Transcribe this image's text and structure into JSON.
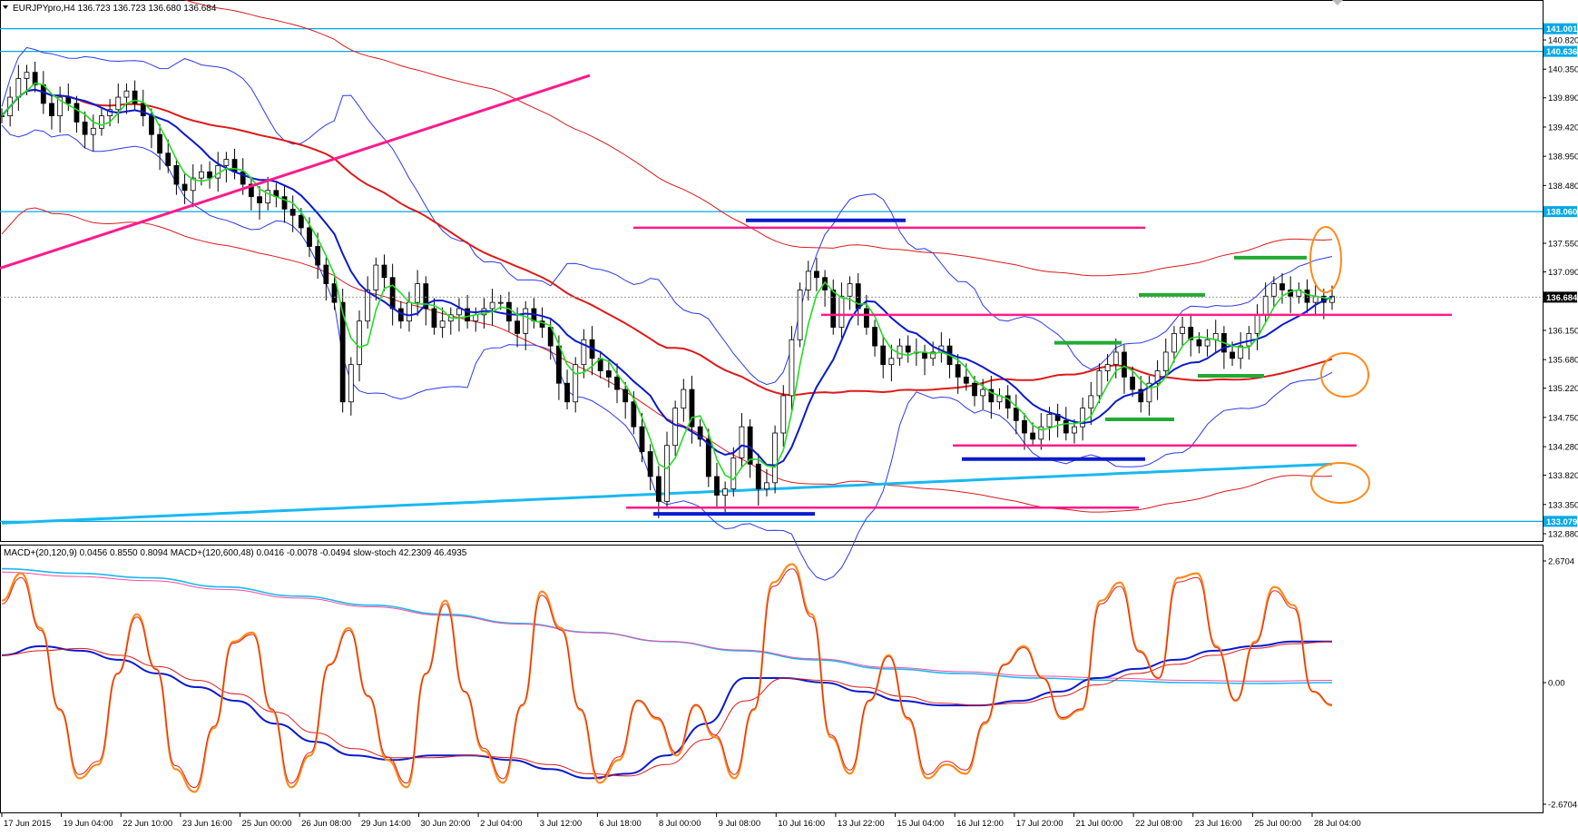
{
  "header": {
    "symbol_line": "EURJPYpro,H4  136.723 136.723 136.680 136.684",
    "indicator_line": "MACD+(20,120,9) 0.0456 0.8550 0.8094  MACD+(120,600,48) 0.0416 -0.0078 -0.0494  slow-stoch 42.2309 46.4935"
  },
  "colors": {
    "background": "#ffffff",
    "bull_candle": "#ffffff",
    "bear_candle": "#000000",
    "level_cyan": "#00a8e8",
    "trend_pink": "#ff1a8c",
    "ma_fast_green": "#22dd22",
    "ma_mid_blue": "#0a1acc",
    "ma_slow_red": "#dd1a1a",
    "bollinger_blue": "#2a3aee",
    "long_ma_cyan": "#1ab8f0",
    "annotation_orange": "#ff8a1a",
    "stoch_orange": "#ff8a1a"
  },
  "chart_data": [
    {
      "type": "candlestick",
      "symbol": "EURJPYpro",
      "timeframe": "H4",
      "ohlc_current": {
        "open": 136.723,
        "high": 136.723,
        "low": 136.68,
        "close": 136.684
      },
      "ylim": [
        132.88,
        141.2
      ],
      "y_ticks": [
        "140.820",
        "140.350",
        "139.890",
        "139.420",
        "138.950",
        "138.480",
        "137.550",
        "137.090",
        "136.150",
        "135.680",
        "135.220",
        "134.750",
        "134.280",
        "133.820",
        "133.350",
        "132.880"
      ],
      "price_badges": [
        "141.001",
        "140.636",
        "138.060",
        "136.684",
        "133.079"
      ],
      "x_labels": [
        "17 Jun 2015",
        "19 Jun 04:00",
        "22 Jun 10:00",
        "23 Jun 16:00",
        "25 Jun 00:00",
        "26 Jun 08:00",
        "29 Jun 14:00",
        "30 Jun 20:00",
        "2 Jul 04:00",
        "3 Jul 12:00",
        "6 Jul 18:00",
        "8 Jul 00:00",
        "9 Jul 08:00",
        "10 Jul 16:00",
        "13 Jul 22:00",
        "15 Jul 04:00",
        "16 Jul 12:00",
        "17 Jul 20:00",
        "21 Jul 00:00",
        "22 Jul 08:00",
        "23 Jul 16:00",
        "25 Jul 00:00",
        "28 Jul 04:00"
      ],
      "horizontal_levels": [
        141.001,
        140.636,
        138.06,
        133.079
      ],
      "close_series": [
        139.6,
        139.9,
        140.2,
        140.3,
        140.1,
        139.8,
        139.6,
        139.9,
        139.8,
        139.5,
        139.3,
        139.4,
        139.6,
        139.7,
        139.9,
        140.0,
        139.8,
        139.6,
        139.3,
        139.0,
        138.8,
        138.5,
        138.4,
        138.6,
        138.7,
        138.6,
        138.8,
        138.9,
        138.7,
        138.5,
        138.3,
        138.2,
        138.4,
        138.3,
        138.1,
        138.0,
        137.8,
        137.5,
        137.2,
        136.9,
        136.6,
        135.0,
        135.6,
        136.3,
        136.8,
        137.2,
        137.0,
        136.5,
        136.3,
        136.6,
        136.9,
        136.5,
        136.2,
        136.3,
        136.4,
        136.5,
        136.3,
        136.4,
        136.5,
        136.6,
        136.6,
        136.3,
        136.1,
        136.5,
        136.3,
        136.2,
        135.9,
        135.3,
        135.0,
        135.6,
        136.0,
        135.7,
        135.5,
        135.4,
        135.2,
        135.0,
        134.6,
        134.2,
        133.8,
        133.4,
        134.3,
        134.9,
        135.2,
        134.6,
        134.4,
        133.8,
        133.5,
        133.6,
        134.1,
        134.6,
        134.0,
        133.6,
        133.7,
        134.5,
        135.1,
        136.0,
        136.8,
        137.1,
        137.0,
        136.8,
        136.2,
        136.7,
        136.9,
        136.5,
        136.2,
        135.9,
        135.6,
        135.7,
        135.9,
        135.8,
        135.8,
        135.7,
        135.8,
        135.9,
        135.6,
        135.4,
        135.3,
        135.1,
        135.2,
        135.0,
        135.1,
        134.9,
        134.7,
        134.5,
        134.4,
        134.6,
        134.8,
        134.7,
        134.5,
        134.6,
        134.9,
        135.1,
        135.5,
        135.6,
        135.8,
        135.4,
        135.2,
        135.0,
        135.3,
        135.5,
        135.8,
        136.1,
        136.2,
        136.0,
        135.9,
        136.0,
        136.1,
        135.8,
        135.7,
        135.9,
        136.1,
        136.4,
        136.7,
        136.9,
        136.8,
        136.7,
        136.8,
        136.6,
        136.7,
        136.6,
        136.7
      ]
    },
    {
      "type": "line",
      "panel": "oscillator",
      "name_text": "MACD+(20,120,9)  MACD+(120,600,48)  slow-stoch",
      "ylim": [
        -2.6704,
        2.6704
      ],
      "y_ticks": [
        "2.6704",
        "0.00",
        "-2.6704"
      ],
      "stoch": [
        1.8,
        2.4,
        1.2,
        -0.6,
        -2.1,
        -1.8,
        0.2,
        1.5,
        0.3,
        -1.9,
        -2.4,
        -1.0,
        0.9,
        1.1,
        -0.6,
        -2.3,
        -1.6,
        0.4,
        1.2,
        -0.3,
        -1.7,
        -2.3,
        0.2,
        1.8,
        -0.2,
        -1.5,
        -2.2,
        -0.5,
        2.0,
        1.2,
        -0.6,
        -2.2,
        -1.7,
        -0.4,
        -0.8,
        -1.6,
        -0.5,
        -1.2,
        -2.1,
        -0.6,
        2.2,
        2.6,
        1.5,
        -1.2,
        -2.0,
        -0.4,
        0.6,
        -0.8,
        -2.1,
        -1.8,
        -2.0,
        -0.9,
        0.4,
        0.8,
        0.1,
        -0.8,
        -0.6,
        1.8,
        2.2,
        0.7,
        0.1,
        2.3,
        2.4,
        0.8,
        -0.4,
        0.9,
        2.1,
        1.7,
        -0.2,
        -0.5
      ],
      "macd_fast": [
        0.6,
        0.8,
        0.7,
        0.5,
        0.2,
        -0.1,
        -0.4,
        -0.9,
        -1.3,
        -1.6,
        -1.7,
        -1.6,
        -1.6,
        -1.7,
        -1.9,
        -2.1,
        -2.0,
        -1.6,
        -0.9,
        0.1,
        0.1,
        0.0,
        -0.2,
        -0.4,
        -0.5,
        -0.5,
        -0.4,
        -0.2,
        0.1,
        0.3,
        0.5,
        0.7,
        0.8,
        0.9,
        0.9
      ],
      "macd_long": [
        2.5,
        2.4,
        2.3,
        2.1,
        1.9,
        1.7,
        1.5,
        1.3,
        1.1,
        0.9,
        0.7,
        0.5,
        0.3,
        0.2,
        0.1,
        0.05,
        0.0,
        -0.02,
        0.0
      ]
    }
  ],
  "annotations": {
    "ellipses": 3,
    "pink_levels": [
      137.8,
      136.4,
      134.3,
      133.3
    ],
    "green_marks": 6,
    "navy_marks": 3
  }
}
